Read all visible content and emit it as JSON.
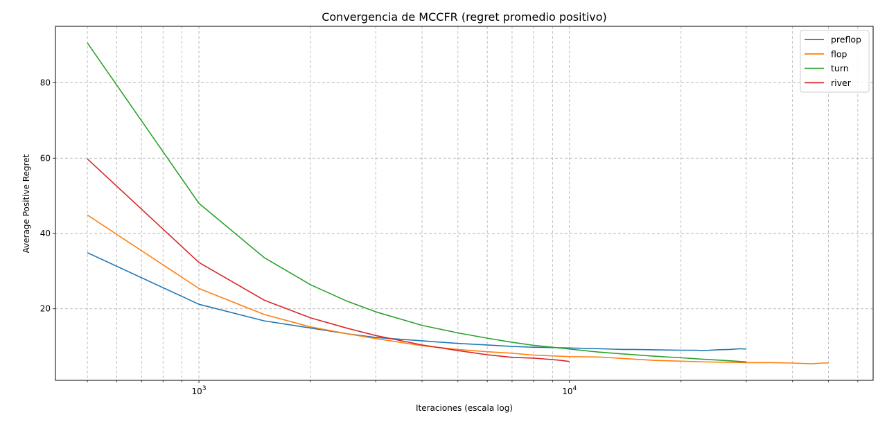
{
  "chart_data": {
    "type": "line",
    "title": "Convergencia de MCCFR (regret promedio positivo)",
    "xlabel": "Iteraciones (escala log)",
    "ylabel": "Average Positive Regret",
    "xscale": "log",
    "xlim": [
      410,
      66000
    ],
    "ylim": [
      1,
      95
    ],
    "x_major_ticks": [
      1000,
      10000
    ],
    "x_major_labels": [
      "10^3",
      "10^4"
    ],
    "y_ticks": [
      20,
      40,
      60,
      80
    ],
    "grid": "on (major and minor, dashed)",
    "legend_position": "top-right",
    "series": [
      {
        "name": "preflop",
        "color": "#1f77b4",
        "points": [
          [
            500,
            34.9
          ],
          [
            1000,
            21.2
          ],
          [
            1500,
            16.8
          ],
          [
            2000,
            14.9
          ],
          [
            2500,
            13.4
          ],
          [
            3000,
            12.4
          ],
          [
            4000,
            11.5
          ],
          [
            5000,
            10.8
          ],
          [
            6000,
            10.4
          ],
          [
            7000,
            10.0
          ],
          [
            8000,
            9.8
          ],
          [
            9000,
            9.7
          ],
          [
            10000,
            9.6
          ],
          [
            12000,
            9.4
          ],
          [
            14000,
            9.2
          ],
          [
            15000,
            9.2
          ],
          [
            17000,
            9.1
          ],
          [
            20000,
            9.0
          ],
          [
            22000,
            9.0
          ],
          [
            23000,
            8.9
          ],
          [
            25000,
            9.1
          ],
          [
            27000,
            9.2
          ],
          [
            29000,
            9.4
          ],
          [
            30000,
            9.3
          ]
        ]
      },
      {
        "name": "flop",
        "color": "#ff7f0e",
        "points": [
          [
            500,
            44.9
          ],
          [
            1000,
            25.4
          ],
          [
            1500,
            18.5
          ],
          [
            2000,
            15.2
          ],
          [
            2500,
            13.4
          ],
          [
            3000,
            12.1
          ],
          [
            4000,
            10.2
          ],
          [
            5000,
            9.2
          ],
          [
            6000,
            8.6
          ],
          [
            7000,
            8.2
          ],
          [
            8000,
            7.7
          ],
          [
            9000,
            7.5
          ],
          [
            10000,
            7.3
          ],
          [
            12000,
            7.2
          ],
          [
            14000,
            6.8
          ],
          [
            17000,
            6.3
          ],
          [
            20000,
            6.1
          ],
          [
            23000,
            5.9
          ],
          [
            27000,
            5.8
          ],
          [
            30000,
            5.7
          ],
          [
            35000,
            5.7
          ],
          [
            40000,
            5.6
          ],
          [
            45000,
            5.4
          ],
          [
            48000,
            5.6
          ],
          [
            50000,
            5.6
          ]
        ]
      },
      {
        "name": "turn",
        "color": "#2ca02c",
        "points": [
          [
            500,
            90.6
          ],
          [
            1000,
            48.0
          ],
          [
            1500,
            33.6
          ],
          [
            2000,
            26.4
          ],
          [
            2500,
            22.1
          ],
          [
            3000,
            19.2
          ],
          [
            4000,
            15.6
          ],
          [
            5000,
            13.6
          ],
          [
            6000,
            12.2
          ],
          [
            7000,
            11.1
          ],
          [
            8000,
            10.3
          ],
          [
            9000,
            9.8
          ],
          [
            10000,
            9.3
          ],
          [
            12000,
            8.5
          ],
          [
            14000,
            8.0
          ],
          [
            17000,
            7.4
          ],
          [
            20000,
            7.0
          ],
          [
            23000,
            6.6
          ],
          [
            27000,
            6.2
          ],
          [
            30000,
            5.9
          ]
        ]
      },
      {
        "name": "river",
        "color": "#d62728",
        "points": [
          [
            500,
            59.8
          ],
          [
            1000,
            32.3
          ],
          [
            1500,
            22.3
          ],
          [
            2000,
            17.6
          ],
          [
            2500,
            14.9
          ],
          [
            3000,
            12.9
          ],
          [
            4000,
            10.4
          ],
          [
            5000,
            8.9
          ],
          [
            6000,
            7.8
          ],
          [
            7000,
            7.1
          ],
          [
            8000,
            6.9
          ],
          [
            8500,
            6.7
          ],
          [
            9000,
            6.5
          ],
          [
            9500,
            6.3
          ],
          [
            10000,
            6.0
          ]
        ]
      }
    ]
  }
}
